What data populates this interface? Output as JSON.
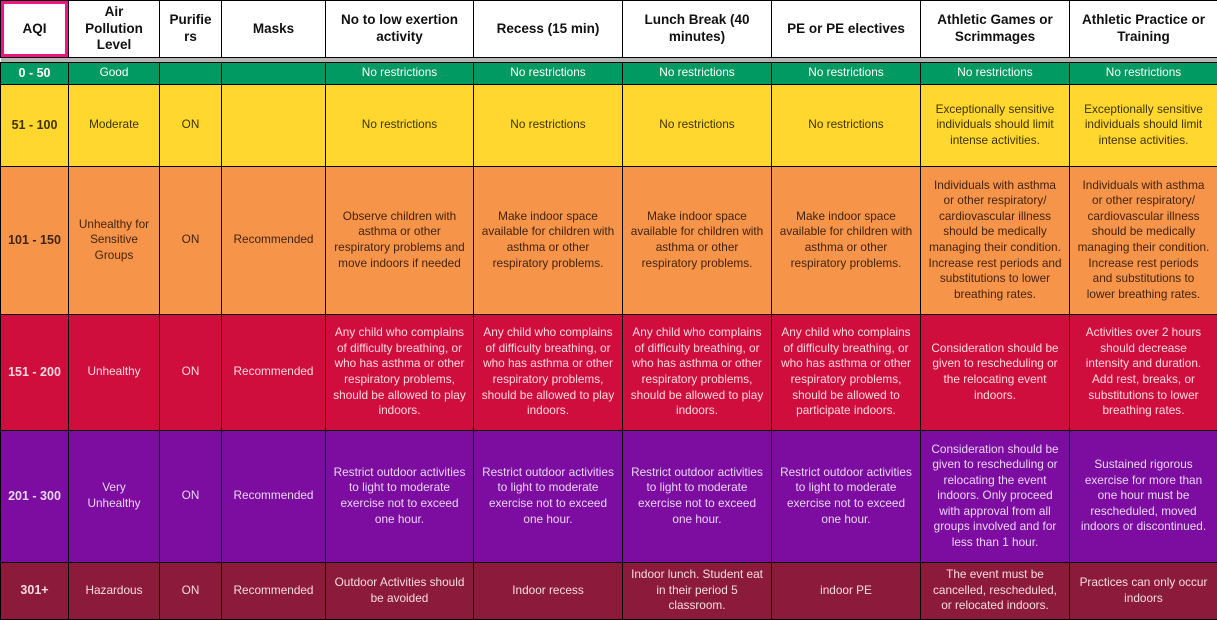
{
  "table": {
    "selected_header": "AQI",
    "accent_color": "#EE1685",
    "divider_color": "#B5B5B5",
    "grid_color": "#000000",
    "columns": [
      "AQI",
      "Air Pollution Level",
      "Purifiers",
      "Masks",
      "No to low exertion activity",
      "Recess (15 min)",
      "Lunch Break (40 minutes)",
      "PE or PE electives",
      "Athletic Games or Scrimmages",
      "Athletic Practice or Training"
    ],
    "rows": [
      {
        "level": "Good",
        "bg": "#019A63",
        "fg": "#FFFFFF",
        "cells": [
          "0 - 50",
          "Good",
          "",
          "",
          "No restrictions",
          "No restrictions",
          "No restrictions",
          "No restrictions",
          "No restrictions",
          "No restrictions"
        ]
      },
      {
        "level": "Moderate",
        "bg": "#FFD72E",
        "fg": "#3F3300",
        "cells": [
          "51 - 100",
          "Moderate",
          "ON",
          "",
          "No restrictions",
          "No restrictions",
          "No restrictions",
          "No restrictions",
          "Exceptionally sensitive individuals should limit intense activities.",
          "Exceptionally sensitive individuals should limit intense activities."
        ]
      },
      {
        "level": "Unhealthy for Sensitive Groups",
        "bg": "#F6954A",
        "fg": "#44230E",
        "cells": [
          "101 - 150",
          "Unhealthy for Sensitive Groups",
          "ON",
          "Recommended",
          "Observe children with asthma or other respiratory problems and move indoors if needed",
          "Make indoor space available for children with asthma or other respiratory problems.",
          "Make indoor space available for children with asthma or other respiratory problems.",
          "Make indoor space available for children with asthma or other respiratory problems.",
          "Individuals with asthma or other respiratory/ cardiovascular illness should be medically managing their condition. Increase rest periods and substitutions to lower breathing rates.",
          "Individuals with asthma or other respiratory/ cardiovascular illness should be medically managing their condition. Increase rest periods and substitutions to lower breathing rates."
        ]
      },
      {
        "level": "Unhealthy",
        "bg": "#D00E3E",
        "fg": "#FFD9E0",
        "cells": [
          "151 - 200",
          "Unhealthy",
          "ON",
          "Recommended",
          "Any child who complains of difficulty breathing, or who has asthma or other respiratory problems, should be allowed to play indoors.",
          "Any child who complains of difficulty breathing, or who has asthma or other respiratory problems, should be allowed to play indoors.",
          "Any child who complains of difficulty breathing, or who has asthma or other respiratory problems, should be allowed to play indoors.",
          "Any child who complains of difficulty breathing, or who has asthma or other respiratory problems, should be allowed to participate indoors.",
          "Consideration should be given to rescheduling or the relocating event indoors.",
          "Activities over 2 hours should decrease intensity and duration. Add rest, breaks, or substitutions to lower breathing rates."
        ]
      },
      {
        "level": "Very Unhealthy",
        "bg": "#7C0DA0",
        "fg": "#E8D5F4",
        "cells": [
          "201 - 300",
          "Very Unhealthy",
          "ON",
          "Recommended",
          "Restrict outdoor activities to light to moderate exercise not to exceed one hour.",
          "Restrict outdoor activities to light to moderate exercise not to exceed one hour.",
          "Restrict outdoor activities to light to moderate exercise not to exceed one hour.",
          "Restrict outdoor activities to light to moderate exercise not to exceed one hour.",
          "Consideration should be given to rescheduling or relocating the event indoors. Only proceed with approval from all groups involved and for less than 1 hour.",
          "Sustained rigorous exercise for more than one hour must be rescheduled, moved indoors or discontinued."
        ]
      },
      {
        "level": "Hazardous",
        "bg": "#8C1B3B",
        "fg": "#F5DBE2",
        "cells": [
          "301+",
          "Hazardous",
          "ON",
          "Recommended",
          "Outdoor Activities should be avoided",
          "Indoor recess",
          "Indoor lunch. Student eat in their period 5 classroom.",
          "indoor PE",
          "The event must be cancelled, rescheduled, or relocated indoors.",
          "Practices can only occur indoors"
        ]
      }
    ]
  }
}
